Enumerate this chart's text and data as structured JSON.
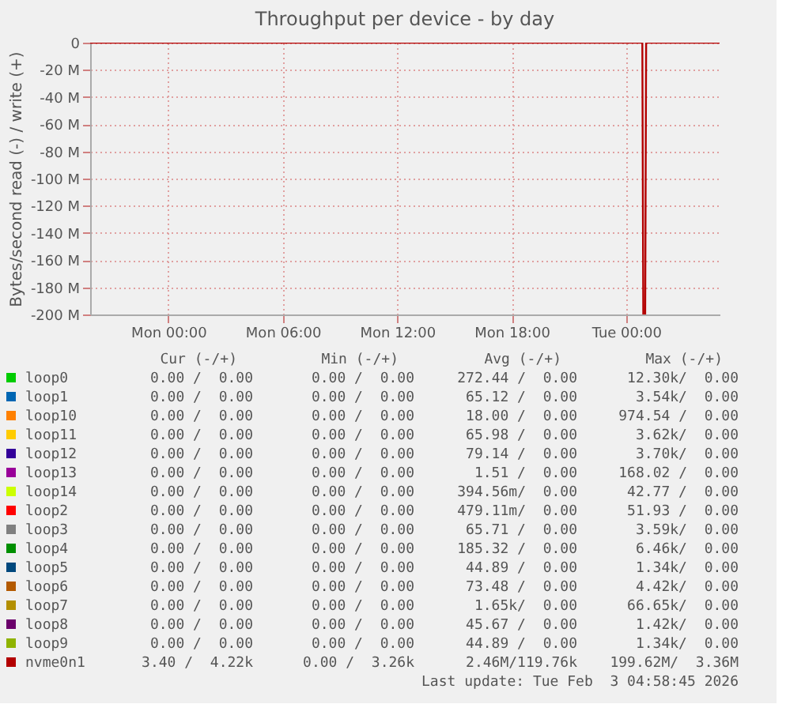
{
  "chart_data": {
    "type": "line",
    "title": "Throughput per device - by day",
    "ylabel": "Bytes/second read (-) / write (+)",
    "x": [
      "2026-02-01T19:54",
      "2026-02-03T00:51",
      "2026-02-03T00:54",
      "2026-02-03T01:00",
      "2026-02-03T01:03",
      "2026-02-03T04:54"
    ],
    "xlim": [
      "2026-02-01T19:54",
      "2026-02-03T04:54"
    ],
    "xticks": [
      {
        "value": "2026-02-02T00:00",
        "label": "Mon 00:00"
      },
      {
        "value": "2026-02-02T06:00",
        "label": "Mon 06:00"
      },
      {
        "value": "2026-02-02T12:00",
        "label": "Mon 12:00"
      },
      {
        "value": "2026-02-02T18:00",
        "label": "Mon 18:00"
      },
      {
        "value": "2026-02-03T00:00",
        "label": "Tue 00:00"
      }
    ],
    "ylim": [
      -200,
      0
    ],
    "yticks": [
      {
        "value": 0,
        "label": "0"
      },
      {
        "value": -20,
        "label": "-20 M"
      },
      {
        "value": -40,
        "label": "-40 M"
      },
      {
        "value": -60,
        "label": "-60 M"
      },
      {
        "value": -80,
        "label": "-80 M"
      },
      {
        "value": -100,
        "label": "-100 M"
      },
      {
        "value": -120,
        "label": "-120 M"
      },
      {
        "value": -140,
        "label": "-140 M"
      },
      {
        "value": -160,
        "label": "-160 M"
      },
      {
        "value": -180,
        "label": "-180 M"
      },
      {
        "value": -200,
        "label": "-200 M"
      }
    ],
    "grid": true,
    "legend": "bottom",
    "series": [
      {
        "name": "loop0",
        "color": "#00cc00",
        "values": [
          null,
          null,
          null,
          null,
          null,
          null
        ]
      },
      {
        "name": "loop1",
        "color": "#0066b3",
        "values": [
          null,
          null,
          null,
          null,
          null,
          null
        ]
      },
      {
        "name": "loop10",
        "color": "#ff8000",
        "values": [
          null,
          null,
          null,
          null,
          null,
          null
        ]
      },
      {
        "name": "loop11",
        "color": "#ffcc00",
        "values": [
          null,
          null,
          null,
          null,
          null,
          null
        ]
      },
      {
        "name": "loop12",
        "color": "#330099",
        "values": [
          null,
          null,
          null,
          null,
          null,
          null
        ]
      },
      {
        "name": "loop13",
        "color": "#990099",
        "values": [
          null,
          null,
          null,
          null,
          null,
          null
        ]
      },
      {
        "name": "loop14",
        "color": "#ccff00",
        "values": [
          null,
          null,
          null,
          null,
          null,
          null
        ]
      },
      {
        "name": "loop2",
        "color": "#ff0000",
        "values": [
          null,
          null,
          null,
          null,
          null,
          null
        ]
      },
      {
        "name": "loop3",
        "color": "#808080",
        "values": [
          null,
          null,
          null,
          null,
          null,
          null
        ]
      },
      {
        "name": "loop4",
        "color": "#008f00",
        "values": [
          null,
          null,
          null,
          null,
          null,
          null
        ]
      },
      {
        "name": "loop5",
        "color": "#00487d",
        "values": [
          null,
          null,
          null,
          null,
          null,
          null
        ]
      },
      {
        "name": "loop6",
        "color": "#b35a00",
        "values": [
          null,
          null,
          null,
          null,
          null,
          null
        ]
      },
      {
        "name": "loop7",
        "color": "#b38f00",
        "values": [
          null,
          null,
          null,
          null,
          null,
          null
        ]
      },
      {
        "name": "loop8",
        "color": "#6b006b",
        "values": [
          null,
          null,
          null,
          null,
          null,
          null
        ]
      },
      {
        "name": "loop9",
        "color": "#8fb300",
        "values": [
          null,
          null,
          null,
          null,
          null,
          null
        ]
      },
      {
        "name": "nvme0n1",
        "color": "#b30000",
        "values": [
          0,
          0,
          -200,
          -200,
          0,
          0
        ]
      }
    ],
    "annotations": [
      "Cur (-/+)",
      "Min (-/+)",
      "Avg (-/+)",
      "Max (-/+)",
      "0.00 /  0.00",
      "0.00 /  0.00",
      "272.44 /  0.00",
      "12.30k/  0.00",
      "0.00 /  0.00",
      "0.00 /  0.00",
      "65.12 /  0.00",
      "3.54k/  0.00",
      "0.00 /  0.00",
      "0.00 /  0.00",
      "18.00 /  0.00",
      "974.54 /  0.00",
      "0.00 /  0.00",
      "0.00 /  0.00",
      "65.98 /  0.00",
      "3.62k/  0.00",
      "0.00 /  0.00",
      "0.00 /  0.00",
      "79.14 /  0.00",
      "3.70k/  0.00",
      "0.00 /  0.00",
      "0.00 /  0.00",
      "1.51 /  0.00",
      "168.02 /  0.00",
      "0.00 /  0.00",
      "0.00 /  0.00",
      "394.56m/  0.00",
      "42.77 /  0.00",
      "0.00 /  0.00",
      "0.00 /  0.00",
      "479.11m/  0.00",
      "51.93 /  0.00",
      "0.00 /  0.00",
      "0.00 /  0.00",
      "65.71 /  0.00",
      "3.59k/  0.00",
      "0.00 /  0.00",
      "0.00 /  0.00",
      "185.32 /  0.00",
      "6.46k/  0.00",
      "0.00 /  0.00",
      "0.00 /  0.00",
      "44.89 /  0.00",
      "1.34k/  0.00",
      "0.00 /  0.00",
      "0.00 /  0.00",
      "73.48 /  0.00",
      "4.42k/  0.00",
      "0.00 /  0.00",
      "0.00 /  0.00",
      "1.65k/  0.00",
      "66.65k/  0.00",
      "0.00 /  0.00",
      "0.00 /  0.00",
      "45.67 /  0.00",
      "1.42k/  0.00",
      "0.00 /  0.00",
      "0.00 /  0.00",
      "44.89 /  0.00",
      "1.34k/  0.00",
      "3.40 /  4.22k",
      "0.00 /  3.26k",
      "2.46M/119.76k",
      "199.62M/  3.36M",
      "Last update: Tue Feb  3 04:58:45 2026"
    ]
  }
}
